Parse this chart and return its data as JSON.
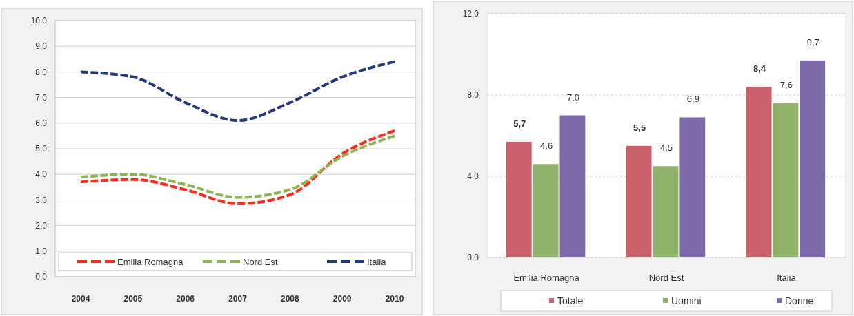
{
  "chart_data": [
    {
      "type": "line",
      "categories": [
        "2004",
        "2005",
        "2006",
        "2007",
        "2008",
        "2009",
        "2010"
      ],
      "series": [
        {
          "name": "Emilia Romagna",
          "color": "#ff2a1a",
          "values": [
            3.7,
            3.8,
            3.4,
            2.85,
            3.2,
            4.8,
            5.7
          ]
        },
        {
          "name": "Nord Est",
          "color": "#8db352",
          "values": [
            3.9,
            4.0,
            3.6,
            3.1,
            3.4,
            4.7,
            5.5
          ]
        },
        {
          "name": "Italia",
          "color": "#1f3a7a",
          "values": [
            8.0,
            7.8,
            6.8,
            6.1,
            6.8,
            7.8,
            8.4
          ]
        }
      ],
      "ylim": [
        0,
        10
      ],
      "yticks": [
        {
          "value": 0,
          "label": "0,0"
        },
        {
          "value": 1,
          "label": "1,0"
        },
        {
          "value": 2,
          "label": "2,0"
        },
        {
          "value": 3,
          "label": "3,0"
        },
        {
          "value": 4,
          "label": "4,0"
        },
        {
          "value": 5,
          "label": "5,0"
        },
        {
          "value": 6,
          "label": "6,0"
        },
        {
          "value": 7,
          "label": "7,0"
        },
        {
          "value": 8,
          "label": "8,0"
        },
        {
          "value": 9,
          "label": "9,0"
        },
        {
          "value": 10,
          "label": "10,0"
        }
      ],
      "grid": "y",
      "legend": "bottom",
      "line_style": "dashed",
      "marker": "none"
    },
    {
      "type": "bar",
      "categories": [
        "Emilia Romagna",
        "Nord Est",
        "Italia"
      ],
      "series": [
        {
          "name": "Totale",
          "color": "#c9626a",
          "values": [
            5.7,
            5.5,
            8.4
          ],
          "value_labels": [
            "5,7",
            "5,5",
            "8,4"
          ]
        },
        {
          "name": "Uomini",
          "color": "#8fb16a",
          "values": [
            4.6,
            4.5,
            7.6
          ],
          "value_labels": [
            "4,6",
            "4,5",
            "7,6"
          ]
        },
        {
          "name": "Donne",
          "color": "#7d6aa8",
          "values": [
            7.0,
            6.9,
            9.7
          ],
          "value_labels": [
            "7,0",
            "6,9",
            "9,7"
          ]
        }
      ],
      "ylim": [
        0,
        12
      ],
      "yticks": [
        {
          "value": 0,
          "label": "0,0"
        },
        {
          "value": 4,
          "label": "4,0"
        },
        {
          "value": 8,
          "label": "8,0"
        },
        {
          "value": 12,
          "label": "12,0"
        }
      ],
      "grid": "y",
      "legend": "bottom"
    }
  ]
}
